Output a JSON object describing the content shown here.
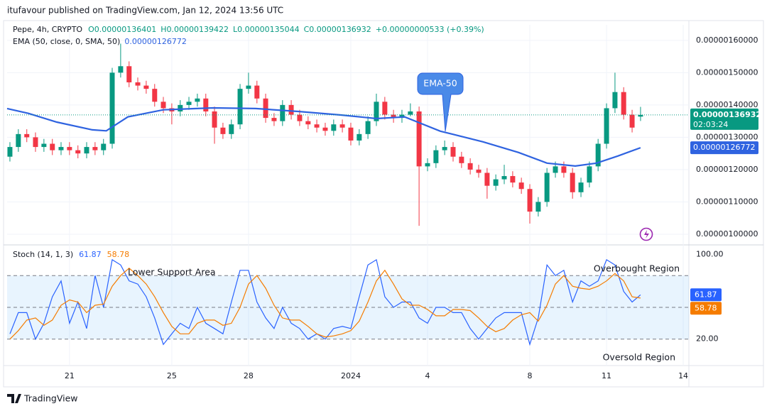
{
  "header": {
    "text": "itufavour published on TradingView.com, Jan 12, 2024 13:56 UTC"
  },
  "footer": {
    "brand": "TradingView"
  },
  "chart_data": [
    {
      "type": "candlestick",
      "title": "Pepe, 4h, CRYPTO",
      "ohlc_legend": [
        "O0.00000136401",
        "H0.00000139422",
        "L0.00000135044",
        "C0.00000136932",
        "+0.00000000533 (+0.39%)"
      ],
      "up_color": "#089981",
      "down_color": "#f23645",
      "x": [
        18.67,
        19,
        19.33,
        19.67,
        20,
        20.33,
        20.67,
        21,
        21.33,
        21.67,
        22,
        22.33,
        22.67,
        23,
        23.33,
        23.67,
        24,
        24.33,
        24.67,
        25,
        25.33,
        25.67,
        26,
        26.33,
        26.67,
        27,
        27.33,
        27.67,
        28,
        28.33,
        28.67,
        29,
        29.33,
        29.67,
        30,
        30.33,
        30.67,
        31,
        31.33,
        31.67,
        32,
        32.33,
        32.67,
        33,
        33.33,
        33.67,
        34,
        34.33,
        34.67,
        35,
        35.33,
        35.67,
        36,
        36.33,
        36.67,
        37,
        37.33,
        37.67,
        38,
        38.33,
        38.67,
        39,
        39.33,
        39.67,
        40,
        40.33,
        40.67,
        41,
        41.33,
        41.67,
        42,
        42.33,
        42.67,
        43,
        43.33
      ],
      "ohlc": [
        [
          1.24e-06,
          1.285e-06,
          1.225e-06,
          1.27e-06
        ],
        [
          1.27e-06,
          1.325e-06,
          1.255e-06,
          1.31e-06
        ],
        [
          1.31e-06,
          1.325e-06,
          1.285e-06,
          1.3e-06
        ],
        [
          1.3e-06,
          1.315e-06,
          1.255e-06,
          1.27e-06
        ],
        [
          1.27e-06,
          1.295e-06,
          1.255e-06,
          1.28e-06
        ],
        [
          1.28e-06,
          1.295e-06,
          1.245e-06,
          1.26e-06
        ],
        [
          1.26e-06,
          1.285e-06,
          1.245e-06,
          1.27e-06
        ],
        [
          1.27e-06,
          1.285e-06,
          1.245e-06,
          1.26e-06
        ],
        [
          1.26e-06,
          1.275e-06,
          1.235e-06,
          1.25e-06
        ],
        [
          1.25e-06,
          1.285e-06,
          1.235e-06,
          1.27e-06
        ],
        [
          1.27e-06,
          1.285e-06,
          1.245e-06,
          1.26e-06
        ],
        [
          1.26e-06,
          1.295e-06,
          1.245e-06,
          1.28e-06
        ],
        [
          1.28e-06,
          1.515e-06,
          1.265e-06,
          1.5e-06
        ],
        [
          1.5e-06,
          1.59e-06,
          1.485e-06,
          1.52e-06
        ],
        [
          1.52e-06,
          1.535e-06,
          1.455e-06,
          1.47e-06
        ],
        [
          1.47e-06,
          1.485e-06,
          1.445e-06,
          1.46e-06
        ],
        [
          1.46e-06,
          1.475e-06,
          1.435e-06,
          1.45e-06
        ],
        [
          1.45e-06,
          1.465e-06,
          1.395e-06,
          1.41e-06
        ],
        [
          1.41e-06,
          1.425e-06,
          1.375e-06,
          1.39e-06
        ],
        [
          1.39e-06,
          1.405e-06,
          1.34e-06,
          1.38e-06
        ],
        [
          1.38e-06,
          1.415e-06,
          1.365e-06,
          1.4e-06
        ],
        [
          1.4e-06,
          1.425e-06,
          1.385e-06,
          1.41e-06
        ],
        [
          1.41e-06,
          1.435e-06,
          1.395e-06,
          1.42e-06
        ],
        [
          1.42e-06,
          1.435e-06,
          1.365e-06,
          1.38e-06
        ],
        [
          1.38e-06,
          1.395e-06,
          1.28e-06,
          1.33e-06
        ],
        [
          1.33e-06,
          1.345e-06,
          1.295e-06,
          1.31e-06
        ],
        [
          1.31e-06,
          1.355e-06,
          1.295e-06,
          1.34e-06
        ],
        [
          1.34e-06,
          1.465e-06,
          1.325e-06,
          1.45e-06
        ],
        [
          1.45e-06,
          1.5e-06,
          1.435e-06,
          1.46e-06
        ],
        [
          1.46e-06,
          1.475e-06,
          1.405e-06,
          1.42e-06
        ],
        [
          1.42e-06,
          1.435e-06,
          1.345e-06,
          1.36e-06
        ],
        [
          1.36e-06,
          1.375e-06,
          1.335e-06,
          1.35e-06
        ],
        [
          1.35e-06,
          1.415e-06,
          1.335e-06,
          1.4e-06
        ],
        [
          1.4e-06,
          1.415e-06,
          1.355e-06,
          1.37e-06
        ],
        [
          1.37e-06,
          1.385e-06,
          1.335e-06,
          1.35e-06
        ],
        [
          1.35e-06,
          1.365e-06,
          1.325e-06,
          1.34e-06
        ],
        [
          1.34e-06,
          1.355e-06,
          1.315e-06,
          1.33e-06
        ],
        [
          1.33e-06,
          1.345e-06,
          1.305e-06,
          1.32e-06
        ],
        [
          1.32e-06,
          1.355e-06,
          1.305e-06,
          1.34e-06
        ],
        [
          1.34e-06,
          1.355e-06,
          1.315e-06,
          1.33e-06
        ],
        [
          1.33e-06,
          1.345e-06,
          1.275e-06,
          1.29e-06
        ],
        [
          1.29e-06,
          1.325e-06,
          1.275e-06,
          1.31e-06
        ],
        [
          1.31e-06,
          1.365e-06,
          1.295e-06,
          1.35e-06
        ],
        [
          1.35e-06,
          1.435e-06,
          1.335e-06,
          1.41e-06
        ],
        [
          1.41e-06,
          1.425e-06,
          1.355e-06,
          1.37e-06
        ],
        [
          1.37e-06,
          1.385e-06,
          1.345e-06,
          1.36e-06
        ],
        [
          1.36e-06,
          1.385e-06,
          1.345e-06,
          1.37e-06
        ],
        [
          1.37e-06,
          1.405e-06,
          1.365e-06,
          1.38e-06
        ],
        [
          1.38e-06,
          1.395e-06,
          1.026e-06,
          1.21e-06
        ],
        [
          1.21e-06,
          1.235e-06,
          1.195e-06,
          1.22e-06
        ],
        [
          1.22e-06,
          1.275e-06,
          1.205e-06,
          1.26e-06
        ],
        [
          1.26e-06,
          1.29e-06,
          1.245e-06,
          1.27e-06
        ],
        [
          1.27e-06,
          1.285e-06,
          1.225e-06,
          1.24e-06
        ],
        [
          1.24e-06,
          1.255e-06,
          1.205e-06,
          1.22e-06
        ],
        [
          1.22e-06,
          1.235e-06,
          1.185e-06,
          1.2e-06
        ],
        [
          1.2e-06,
          1.215e-06,
          1.175e-06,
          1.19e-06
        ],
        [
          1.19e-06,
          1.205e-06,
          1.11e-06,
          1.15e-06
        ],
        [
          1.15e-06,
          1.185e-06,
          1.135e-06,
          1.17e-06
        ],
        [
          1.17e-06,
          1.215e-06,
          1.155e-06,
          1.18e-06
        ],
        [
          1.18e-06,
          1.195e-06,
          1.145e-06,
          1.16e-06
        ],
        [
          1.16e-06,
          1.175e-06,
          1.125e-06,
          1.14e-06
        ],
        [
          1.14e-06,
          1.155e-06,
          1.033e-06,
          1.07e-06
        ],
        [
          1.07e-06,
          1.115e-06,
          1.055e-06,
          1.1e-06
        ],
        [
          1.1e-06,
          1.205e-06,
          1.085e-06,
          1.19e-06
        ],
        [
          1.19e-06,
          1.225e-06,
          1.175e-06,
          1.21e-06
        ],
        [
          1.21e-06,
          1.225e-06,
          1.175e-06,
          1.19e-06
        ],
        [
          1.19e-06,
          1.205e-06,
          1.11e-06,
          1.13e-06
        ],
        [
          1.13e-06,
          1.175e-06,
          1.115e-06,
          1.16e-06
        ],
        [
          1.16e-06,
          1.225e-06,
          1.145e-06,
          1.21e-06
        ],
        [
          1.21e-06,
          1.295e-06,
          1.195e-06,
          1.28e-06
        ],
        [
          1.28e-06,
          1.405e-06,
          1.265e-06,
          1.39e-06
        ],
        [
          1.39e-06,
          1.5e-06,
          1.375e-06,
          1.44e-06
        ],
        [
          1.44e-06,
          1.455e-06,
          1.355e-06,
          1.37e-06
        ],
        [
          1.37e-06,
          1.385e-06,
          1.315e-06,
          1.33e-06
        ],
        [
          1.36401e-06,
          1.39422e-06,
          1.35044e-06,
          1.36932e-06
        ]
      ],
      "last_price_label": "0.00000136932",
      "countdown": "02:03:24",
      "series": [
        {
          "name": "EMA (50, close, 0, SMA, 50)",
          "color": "#2f63e0",
          "x": [
            18.56,
            19.39,
            20.5,
            21.89,
            22.44,
            23.28,
            24.67,
            26.61,
            28.28,
            29.94,
            31.61,
            33,
            34.11,
            35.5,
            37.17,
            38.56,
            39.67,
            40.78,
            41.61,
            42.44,
            43.33
          ],
          "values": [
            1.389e-06,
            1.374e-06,
            1.347e-06,
            1.323e-06,
            1.32e-06,
            1.363e-06,
            1.385e-06,
            1.391e-06,
            1.389e-06,
            1.38e-06,
            1.369e-06,
            1.358e-06,
            1.363e-06,
            1.319e-06,
            1.286e-06,
            1.253e-06,
            1.22e-06,
            1.211e-06,
            1.22e-06,
            1.242e-06,
            1.26772e-06
          ],
          "value_label": "0.00000126772"
        }
      ],
      "annotation": "EMA-50",
      "xlim": [
        18.56,
        45.22
      ],
      "ylim": [
        9.67e-07,
        1.648e-06
      ],
      "yticks": [
        {
          "value": 1e-06,
          "label": "0.00000100000"
        },
        {
          "value": 1.1e-06,
          "label": "0.00000110000"
        },
        {
          "value": 1.2e-06,
          "label": "0.00000120000"
        },
        {
          "value": 1.3e-06,
          "label": "0.00000130000"
        },
        {
          "value": 1.4e-06,
          "label": "0.00000140000"
        },
        {
          "value": 1.5e-06,
          "label": "0.00000150000"
        },
        {
          "value": 1.6e-06,
          "label": "0.00000160000"
        }
      ],
      "grid": true
    },
    {
      "type": "line",
      "title": "Stoch (14, 1, 3)",
      "x": [
        18.67,
        19,
        19.33,
        19.67,
        20,
        20.33,
        20.67,
        21,
        21.33,
        21.67,
        22,
        22.33,
        22.67,
        23,
        23.33,
        23.67,
        24,
        24.33,
        24.67,
        25,
        25.33,
        25.67,
        26,
        26.33,
        26.67,
        27,
        27.33,
        27.67,
        28,
        28.33,
        28.67,
        29,
        29.33,
        29.67,
        30,
        30.33,
        30.67,
        31,
        31.33,
        31.67,
        32,
        32.33,
        32.67,
        33,
        33.33,
        33.67,
        34,
        34.33,
        34.67,
        35,
        35.33,
        35.67,
        36,
        36.33,
        36.67,
        37,
        37.33,
        37.67,
        38,
        38.33,
        38.67,
        39,
        39.33,
        39.67,
        40,
        40.33,
        40.67,
        41,
        41.33,
        41.67,
        42,
        42.33,
        42.67,
        43,
        43.33
      ],
      "series": [
        {
          "color": "#2962ff",
          "values": [
            25,
            45,
            45,
            20,
            35,
            60,
            75,
            35,
            55,
            30,
            80,
            50,
            95,
            90,
            75,
            72,
            60,
            40,
            15,
            25,
            35,
            30,
            50,
            35,
            30,
            25,
            55,
            85,
            85,
            55,
            40,
            30,
            50,
            35,
            30,
            20,
            25,
            20,
            30,
            32,
            30,
            60,
            90,
            95,
            60,
            50,
            55,
            55,
            40,
            35,
            50,
            50,
            45,
            45,
            30,
            20,
            30,
            40,
            45,
            45,
            45,
            15,
            40,
            90,
            80,
            85,
            55,
            75,
            70,
            75,
            95,
            90,
            65,
            55,
            61.87
          ]
        },
        {
          "color": "#f57c00",
          "values": [
            20,
            28,
            38,
            40,
            33,
            38,
            52,
            57,
            55,
            45,
            52,
            53,
            70,
            80,
            87,
            80,
            72,
            60,
            45,
            32,
            25,
            25,
            35,
            38,
            38,
            33,
            35,
            50,
            72,
            80,
            68,
            52,
            40,
            38,
            38,
            32,
            25,
            22,
            23,
            25,
            28,
            37,
            55,
            75,
            85,
            72,
            58,
            52,
            52,
            48,
            42,
            42,
            48,
            48,
            47,
            40,
            32,
            27,
            30,
            38,
            43,
            45,
            37,
            52,
            72,
            80,
            70,
            68,
            67,
            70,
            75,
            82,
            75,
            60,
            58.78
          ]
        }
      ],
      "band": [
        20,
        80
      ],
      "levels": [
        80,
        50,
        20
      ],
      "annotations": [
        "Lower Support Area",
        "Overbought Region",
        "Oversold Region"
      ],
      "xlim": [
        18.56,
        45.22
      ],
      "ylim": [
        -5,
        109
      ],
      "yticks": [
        {
          "value": 100,
          "label": "100.00"
        },
        {
          "value": 20,
          "label": "20.00"
        }
      ],
      "xticks": [
        21,
        25,
        28,
        {
          "value": 32,
          "label": "2024"
        },
        {
          "value": 35,
          "label": "4"
        },
        {
          "value": 39,
          "label": "8"
        },
        {
          "value": 42,
          "label": "11"
        },
        {
          "value": 45,
          "label": "14"
        }
      ]
    }
  ]
}
